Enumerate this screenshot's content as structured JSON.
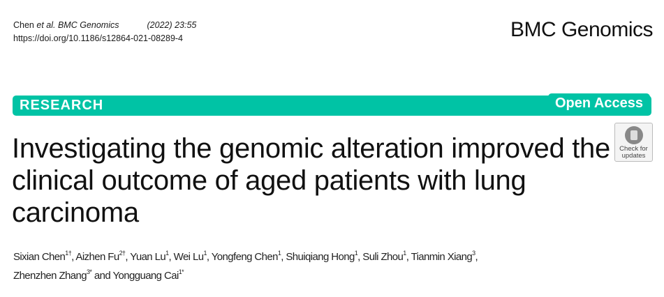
{
  "citation": {
    "author": "Chen",
    "etal": "et al.",
    "journal": "BMC Genomics",
    "year_volume": "(2022) 23:55",
    "doi": "https://doi.org/10.1186/s12864-021-08289-4"
  },
  "journal_logo": "BMC Genomics",
  "banner": {
    "type": "RESEARCH",
    "access": "Open Access",
    "color": "#00c3a5"
  },
  "check_updates": {
    "line1": "Check for",
    "line2": "updates"
  },
  "title": "Investigating the genomic alteration improved the clinical outcome of aged patients with lung carcinoma",
  "authors": [
    {
      "name": "Sixian Chen",
      "sup": "1†"
    },
    {
      "name": "Aizhen Fu",
      "sup": "2†"
    },
    {
      "name": "Yuan Lu",
      "sup": "1"
    },
    {
      "name": "Wei Lu",
      "sup": "1"
    },
    {
      "name": "Yongfeng Chen",
      "sup": "1"
    },
    {
      "name": "Shuiqiang Hong",
      "sup": "1"
    },
    {
      "name": "Suli Zhou",
      "sup": "1"
    },
    {
      "name": "Tianmin Xiang",
      "sup": "3"
    },
    {
      "name": "Zhenzhen Zhang",
      "sup": "3*"
    },
    {
      "name": "Yongguang Cai",
      "sup": "1*"
    }
  ],
  "and_word": "and"
}
